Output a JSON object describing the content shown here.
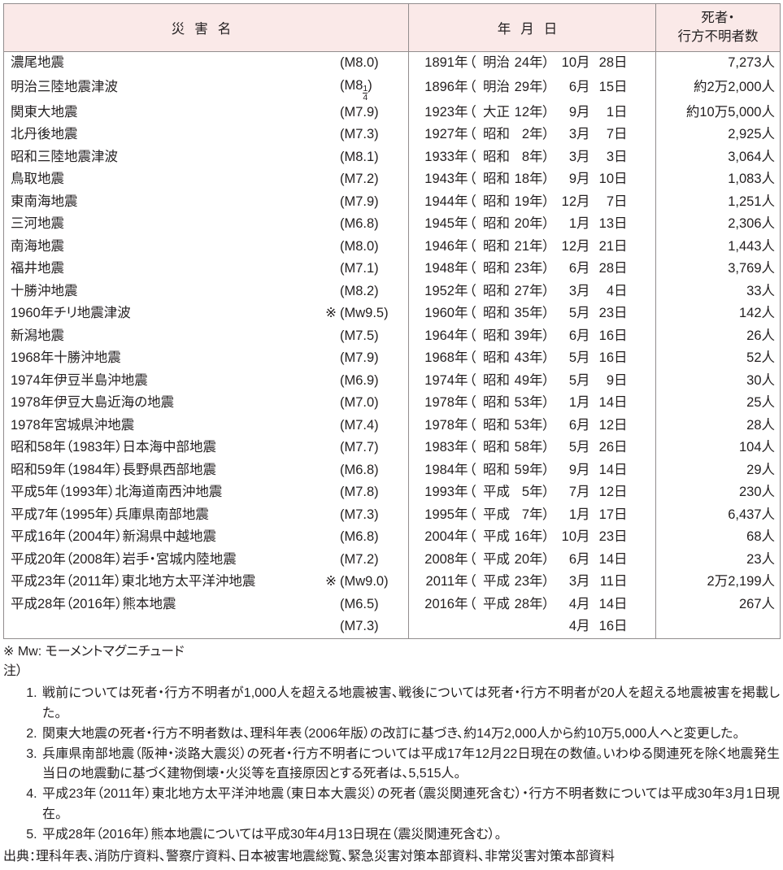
{
  "type": "table",
  "background_color": "#ffffff",
  "border_color": "#928d8e",
  "header_bg": "#fae9e8",
  "text_color": "#231f20",
  "font_size_body": 16.5,
  "font_size_notes": 16,
  "row_height": 27.5,
  "col_widths": {
    "name": 498,
    "date": 304,
    "deaths": 153
  },
  "subcol_widths": {
    "name": {
      "nm": "flex",
      "mk": 22,
      "mag": 76
    },
    "date": {
      "y": 48,
      "ys": 18,
      "pr": 14,
      "en": 36,
      "ey": 24,
      "eys": 30,
      "m": 28,
      "ms": 18,
      "d": 28,
      "ds": 18
    }
  },
  "headers": {
    "name": "災害名",
    "date": "年月日",
    "deaths": "死者・\n行方不明者数"
  },
  "rows": [
    {
      "name": "濃尾地震",
      "mark": "",
      "mag": "(M8.0)",
      "year": "1891",
      "era": "明治",
      "eraYear": "24",
      "month": "10",
      "day": "28",
      "deaths": "7,273人"
    },
    {
      "name": "明治三陸地震津波",
      "mark": "",
      "mag_html": "(M8<span class=\"frac\"><span>1</span><span class=\"den\">4</span></span>)",
      "year": "1896",
      "era": "明治",
      "eraYear": "29",
      "month": "6",
      "day": "15",
      "deaths": "約2万2,000人"
    },
    {
      "name": "関東大地震",
      "mark": "",
      "mag": "(M7.9)",
      "year": "1923",
      "era": "大正",
      "eraYear": "12",
      "month": "9",
      "day": "1",
      "deaths": "約10万5,000人"
    },
    {
      "name": "北丹後地震",
      "mark": "",
      "mag": "(M7.3)",
      "year": "1927",
      "era": "昭和",
      "eraYear": "2",
      "month": "3",
      "day": "7",
      "deaths": "2,925人"
    },
    {
      "name": "昭和三陸地震津波",
      "mark": "",
      "mag": "(M8.1)",
      "year": "1933",
      "era": "昭和",
      "eraYear": "8",
      "month": "3",
      "day": "3",
      "deaths": "3,064人"
    },
    {
      "name": "鳥取地震",
      "mark": "",
      "mag": "(M7.2)",
      "year": "1943",
      "era": "昭和",
      "eraYear": "18",
      "month": "9",
      "day": "10",
      "deaths": "1,083人"
    },
    {
      "name": "東南海地震",
      "mark": "",
      "mag": "(M7.9)",
      "year": "1944",
      "era": "昭和",
      "eraYear": "19",
      "month": "12",
      "day": "7",
      "deaths": "1,251人"
    },
    {
      "name": "三河地震",
      "mark": "",
      "mag": "(M6.8)",
      "year": "1945",
      "era": "昭和",
      "eraYear": "20",
      "month": "1",
      "day": "13",
      "deaths": "2,306人"
    },
    {
      "name": "南海地震",
      "mark": "",
      "mag": "(M8.0)",
      "year": "1946",
      "era": "昭和",
      "eraYear": "21",
      "month": "12",
      "day": "21",
      "deaths": "1,443人"
    },
    {
      "name": "福井地震",
      "mark": "",
      "mag": "(M7.1)",
      "year": "1948",
      "era": "昭和",
      "eraYear": "23",
      "month": "6",
      "day": "28",
      "deaths": "3,769人"
    },
    {
      "name": "十勝沖地震",
      "mark": "",
      "mag": "(M8.2)",
      "year": "1952",
      "era": "昭和",
      "eraYear": "27",
      "month": "3",
      "day": "4",
      "deaths": "33人"
    },
    {
      "name": "1960年チリ地震津波",
      "mark": "※",
      "mag": "(Mw9.5)",
      "year": "1960",
      "era": "昭和",
      "eraYear": "35",
      "month": "5",
      "day": "23",
      "deaths": "142人"
    },
    {
      "name": "新潟地震",
      "mark": "",
      "mag": "(M7.5)",
      "year": "1964",
      "era": "昭和",
      "eraYear": "39",
      "month": "6",
      "day": "16",
      "deaths": "26人"
    },
    {
      "name": "1968年十勝沖地震",
      "mark": "",
      "mag": "(M7.9)",
      "year": "1968",
      "era": "昭和",
      "eraYear": "43",
      "month": "5",
      "day": "16",
      "deaths": "52人"
    },
    {
      "name": "1974年伊豆半島沖地震",
      "mark": "",
      "mag": "(M6.9)",
      "year": "1974",
      "era": "昭和",
      "eraYear": "49",
      "month": "5",
      "day": "9",
      "deaths": "30人"
    },
    {
      "name": "1978年伊豆大島近海の地震",
      "mark": "",
      "mag": "(M7.0)",
      "year": "1978",
      "era": "昭和",
      "eraYear": "53",
      "month": "1",
      "day": "14",
      "deaths": "25人"
    },
    {
      "name": "1978年宮城県沖地震",
      "mark": "",
      "mag": "(M7.4)",
      "year": "1978",
      "era": "昭和",
      "eraYear": "53",
      "month": "6",
      "day": "12",
      "deaths": "28人"
    },
    {
      "name": "昭和58年（1983年）日本海中部地震",
      "mark": "",
      "mag": "(M7.7)",
      "year": "1983",
      "era": "昭和",
      "eraYear": "58",
      "month": "5",
      "day": "26",
      "deaths": "104人"
    },
    {
      "name": "昭和59年（1984年）長野県西部地震",
      "mark": "",
      "mag": "(M6.8)",
      "year": "1984",
      "era": "昭和",
      "eraYear": "59",
      "month": "9",
      "day": "14",
      "deaths": "29人"
    },
    {
      "name": "平成5年（1993年）北海道南西沖地震",
      "mark": "",
      "mag": "(M7.8)",
      "year": "1993",
      "era": "平成",
      "eraYear": "5",
      "month": "7",
      "day": "12",
      "deaths": "230人"
    },
    {
      "name": "平成7年（1995年）兵庫県南部地震",
      "mark": "",
      "mag": "(M7.3)",
      "year": "1995",
      "era": "平成",
      "eraYear": "7",
      "month": "1",
      "day": "17",
      "deaths": "6,437人"
    },
    {
      "name": "平成16年（2004年）新潟県中越地震",
      "mark": "",
      "mag": "(M6.8)",
      "year": "2004",
      "era": "平成",
      "eraYear": "16",
      "month": "10",
      "day": "23",
      "deaths": "68人"
    },
    {
      "name": "平成20年（2008年）岩手・宮城内陸地震",
      "mark": "",
      "mag": "(M7.2)",
      "year": "2008",
      "era": "平成",
      "eraYear": "20",
      "month": "6",
      "day": "14",
      "deaths": "23人"
    },
    {
      "name": "平成23年（2011年）東北地方太平洋沖地震",
      "mark": "※",
      "mag": "(Mw9.0)",
      "year": "2011",
      "era": "平成",
      "eraYear": "23",
      "month": "3",
      "day": "11",
      "deaths": "2万2,199人"
    },
    {
      "name": "平成28年（2016年）熊本地震",
      "mark": "",
      "mag": "(M6.5)",
      "year": "2016",
      "era": "平成",
      "eraYear": "28",
      "month": "4",
      "day": "14",
      "deaths": "267人"
    },
    {
      "name": "",
      "mark": "",
      "mag": "(M7.3)",
      "year": "",
      "era": "",
      "eraYear": "",
      "month": "4",
      "day": "16",
      "deaths": "",
      "noEra": true
    }
  ],
  "suffix": {
    "year": "年",
    "eraYear": "年）",
    "month": "月",
    "day": "日",
    "eraOpen": "（"
  },
  "notes": {
    "mw": "※ Mw: モーメントマグニチュード",
    "lead": "注）",
    "items": [
      "戦前については死者・行方不明者が1,000人を超える地震被害、戦後については死者・行方不明者が20人を超える地震被害を掲載した。",
      "関東大地震の死者・行方不明者数は、理科年表（2006年版）の改訂に基づき、約14万2,000人から約10万5,000人へと変更した。",
      "兵庫県南部地震（阪神・淡路大震災）の死者・行方不明者については平成17年12月22日現在の数値。いわゆる関連死を除く地震発生当日の地震動に基づく建物倒壊・火災等を直接原因とする死者は、5,515人。",
      "平成23年（2011年）東北地方太平洋沖地震（東日本大震災）の死者（震災関連死含む）・行方不明者数については平成30年3月1日現在。",
      "平成28年（2016年）熊本地震については平成30年4月13日現在（震災関連死含む）。"
    ],
    "source": "出典：理科年表、消防庁資料、警察庁資料、日本被害地震総覧、緊急災害対策本部資料、非常災害対策本部資料"
  }
}
